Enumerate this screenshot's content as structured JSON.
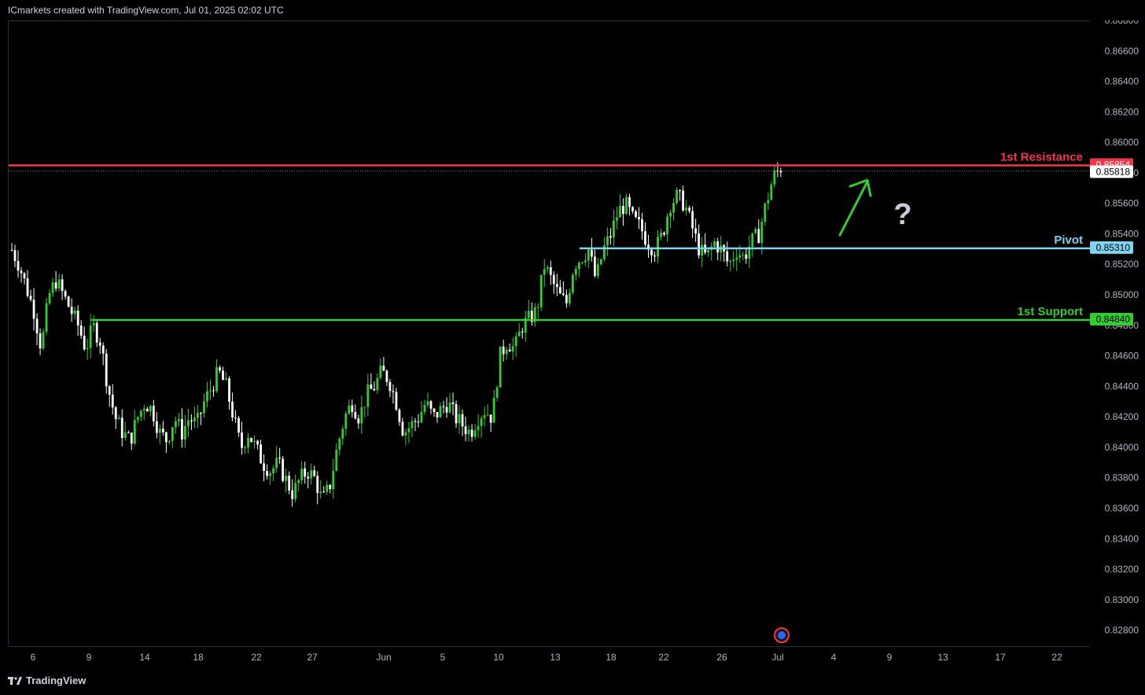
{
  "header": {
    "text": "ICmarkets created with TradingView.com, Jul 01, 2025 02:02 UTC"
  },
  "footer": {
    "brand": "TradingView"
  },
  "colors": {
    "background": "#000000",
    "up_candle": "#33cc33",
    "down_candle": "#ffffff",
    "resistance": "#f23645",
    "pivot": "#7fd3f0",
    "support": "#33cc33",
    "arrow": "#33cc33",
    "question": "#c8ccd6"
  },
  "chart_data": {
    "type": "candlestick",
    "title": "",
    "ylim": [
      0.827,
      0.868
    ],
    "y_ticks": [
      "0.86800",
      "0.86600",
      "0.86400",
      "0.86200",
      "0.86000",
      "0.85800",
      "0.85600",
      "0.85400",
      "0.85200",
      "0.85000",
      "0.84800",
      "0.84600",
      "0.84400",
      "0.84200",
      "0.84000",
      "0.83800",
      "0.83600",
      "0.83400",
      "0.83200",
      "0.83000",
      "0.82800"
    ],
    "x_ticks": [
      "6",
      "9",
      "14",
      "18",
      "22",
      "27",
      "Jun",
      "5",
      "10",
      "13",
      "18",
      "22",
      "26",
      "Jul",
      "4",
      "9",
      "13",
      "17",
      "22"
    ],
    "levels": [
      {
        "name": "1st Resistance",
        "value": 0.85854,
        "label": "0.85854"
      },
      {
        "name": "Pivot",
        "value": 0.8531,
        "label": "0.85310"
      },
      {
        "name": "1st Support",
        "value": 0.8484,
        "label": "0.84840"
      }
    ],
    "current_price": {
      "value": 0.85818,
      "label": "0.85818"
    },
    "annotations": {
      "arrow": "up",
      "question": "?"
    },
    "price_path": [
      0.853,
      0.852,
      0.8505,
      0.849,
      0.8465,
      0.85,
      0.851,
      0.85,
      0.849,
      0.848,
      0.8465,
      0.848,
      0.847,
      0.844,
      0.842,
      0.841,
      0.8405,
      0.842,
      0.843,
      0.8425,
      0.841,
      0.8405,
      0.842,
      0.841,
      0.842,
      0.8415,
      0.843,
      0.844,
      0.845,
      0.844,
      0.842,
      0.84,
      0.841,
      0.84,
      0.839,
      0.8385,
      0.839,
      0.838,
      0.837,
      0.838,
      0.8385,
      0.838,
      0.8365,
      0.8375,
      0.84,
      0.842,
      0.843,
      0.842,
      0.8435,
      0.844,
      0.845,
      0.8445,
      0.843,
      0.841,
      0.8415,
      0.842,
      0.843,
      0.842,
      0.8425,
      0.843,
      0.842,
      0.8415,
      0.841,
      0.842,
      0.8425,
      0.842,
      0.846,
      0.847,
      0.8465,
      0.848,
      0.8485,
      0.849,
      0.852,
      0.851,
      0.85,
      0.8495,
      0.852,
      0.8525,
      0.853,
      0.851,
      0.853,
      0.854,
      0.8555,
      0.856,
      0.855,
      0.8545,
      0.8535,
      0.853,
      0.854,
      0.856,
      0.8565,
      0.856,
      0.8545,
      0.853,
      0.8525,
      0.8535,
      0.853,
      0.852,
      0.853,
      0.8525,
      0.8535,
      0.854,
      0.856,
      0.8578,
      0.8584
    ],
    "price_path_x_range": [
      0,
      0.7
    ]
  }
}
